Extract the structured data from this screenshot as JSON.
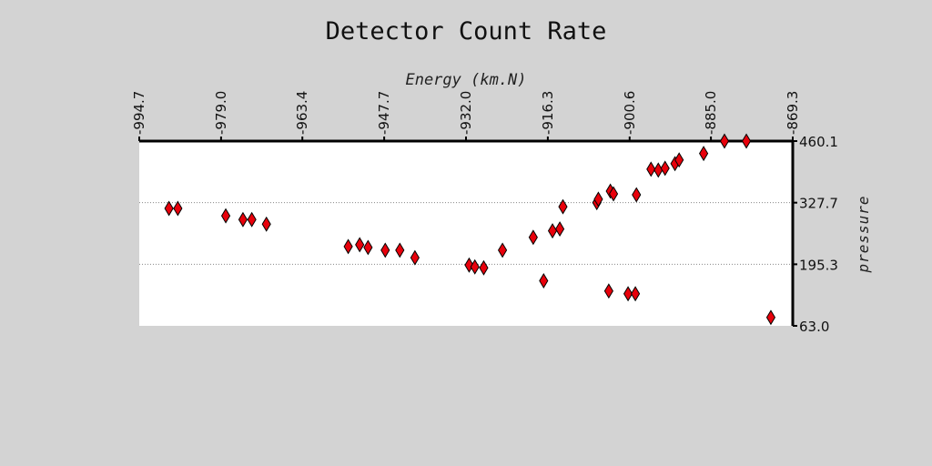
{
  "chart_data": {
    "type": "scatter",
    "title": "Detector Count Rate",
    "xlabel": "Energy (km.N)",
    "ylabel": "pressure",
    "xlim": [
      -994.7,
      -869.3
    ],
    "ylim": [
      63.0,
      460.1
    ],
    "x_ticks": [
      "-994.7",
      "-979.0",
      "-963.4",
      "-947.7",
      "-932.0",
      "-916.3",
      "-900.6",
      "-885.0",
      "-869.3"
    ],
    "y_ticks": [
      "460.1",
      "327.7",
      "195.3",
      "63.0"
    ],
    "x_tick_values": [
      -994.7,
      -979.0,
      -963.4,
      -947.7,
      -932.0,
      -916.3,
      -900.6,
      -885.0,
      -869.3
    ],
    "y_tick_values": [
      460.1,
      327.7,
      195.3,
      63.0
    ],
    "x_axis_position": "top",
    "y_axis_position": "right",
    "grid": "horizontal dotted",
    "marker": "diamond",
    "marker_color": "#e8000b",
    "points": [
      {
        "x": -989.0,
        "y": 315.4
      },
      {
        "x": -987.3,
        "y": 315.4
      },
      {
        "x": -978.1,
        "y": 299.4
      },
      {
        "x": -974.8,
        "y": 291.4
      },
      {
        "x": -973.1,
        "y": 291.4
      },
      {
        "x": -970.3,
        "y": 281.5
      },
      {
        "x": -954.6,
        "y": 233.4
      },
      {
        "x": -952.4,
        "y": 237.3
      },
      {
        "x": -950.8,
        "y": 231.4
      },
      {
        "x": -947.5,
        "y": 225.5
      },
      {
        "x": -944.7,
        "y": 225.5
      },
      {
        "x": -941.8,
        "y": 209.5
      },
      {
        "x": -931.4,
        "y": 193.6
      },
      {
        "x": -930.3,
        "y": 189.6
      },
      {
        "x": -928.6,
        "y": 187.7
      },
      {
        "x": -925.0,
        "y": 225.5
      },
      {
        "x": -919.1,
        "y": 253.3
      },
      {
        "x": -917.1,
        "y": 159.8
      },
      {
        "x": -915.4,
        "y": 267.2
      },
      {
        "x": -914.0,
        "y": 271.2
      },
      {
        "x": -913.4,
        "y": 319.0
      },
      {
        "x": -906.9,
        "y": 327.7
      },
      {
        "x": -906.6,
        "y": 335.1
      },
      {
        "x": -904.6,
        "y": 137.9
      },
      {
        "x": -904.3,
        "y": 352.6
      },
      {
        "x": -903.7,
        "y": 346.6
      },
      {
        "x": -900.9,
        "y": 132.0
      },
      {
        "x": -899.5,
        "y": 132.0
      },
      {
        "x": -899.3,
        "y": 344.6
      },
      {
        "x": -896.5,
        "y": 399.7
      },
      {
        "x": -895.1,
        "y": 397.7
      },
      {
        "x": -893.8,
        "y": 401.7
      },
      {
        "x": -891.9,
        "y": 411.6
      },
      {
        "x": -891.1,
        "y": 419.6
      },
      {
        "x": -886.4,
        "y": 433.5
      },
      {
        "x": -882.4,
        "y": 460.1
      },
      {
        "x": -878.2,
        "y": 460.1
      },
      {
        "x": -873.5,
        "y": 81.0
      }
    ]
  }
}
